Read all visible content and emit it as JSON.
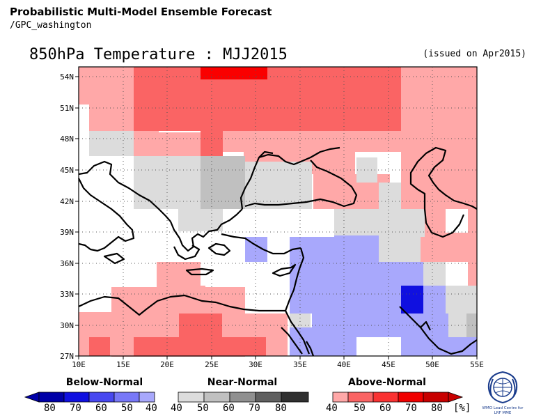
{
  "header": {
    "title": "Probabilistic Multi-Model Ensemble Forecast",
    "subtitle": "/GPC_washington"
  },
  "map": {
    "title": "850hPa Temperature : MJJ2015",
    "issued": "(issued on Apr2015)",
    "lat_labels": [
      "54N",
      "51N",
      "48N",
      "45N",
      "42N",
      "39N",
      "36N",
      "33N",
      "30N",
      "27N"
    ],
    "lon_labels": [
      "10E",
      "15E",
      "20E",
      "25E",
      "30E",
      "35E",
      "40E",
      "45E",
      "50E",
      "55E"
    ],
    "extent": {
      "lon_min": 10,
      "lon_max": 55,
      "lat_min": 27,
      "lat_max": 55.5
    }
  },
  "legend": {
    "below": {
      "label": "Below-Normal",
      "ticks": [
        "80",
        "70",
        "60",
        "50",
        "40"
      ],
      "colors": [
        "#0000a8",
        "#1010e0",
        "#4848f0",
        "#7878f8",
        "#a8a8fc"
      ]
    },
    "near": {
      "label": "Near-Normal",
      "ticks": [
        "40",
        "50",
        "60",
        "70",
        "80"
      ],
      "colors": [
        "#dcdcdc",
        "#c0c0c0",
        "#909090",
        "#606060",
        "#303030"
      ]
    },
    "above": {
      "label": "Above-Normal",
      "ticks": [
        "40",
        "50",
        "60",
        "70",
        "80"
      ],
      "colors": [
        "#ffa8a8",
        "#fa6464",
        "#fa3232",
        "#f00000",
        "#c80000"
      ]
    },
    "unit": "[%]"
  },
  "logo": {
    "line1": "WMO Lead Centre for",
    "line2": "LRF MME"
  }
}
